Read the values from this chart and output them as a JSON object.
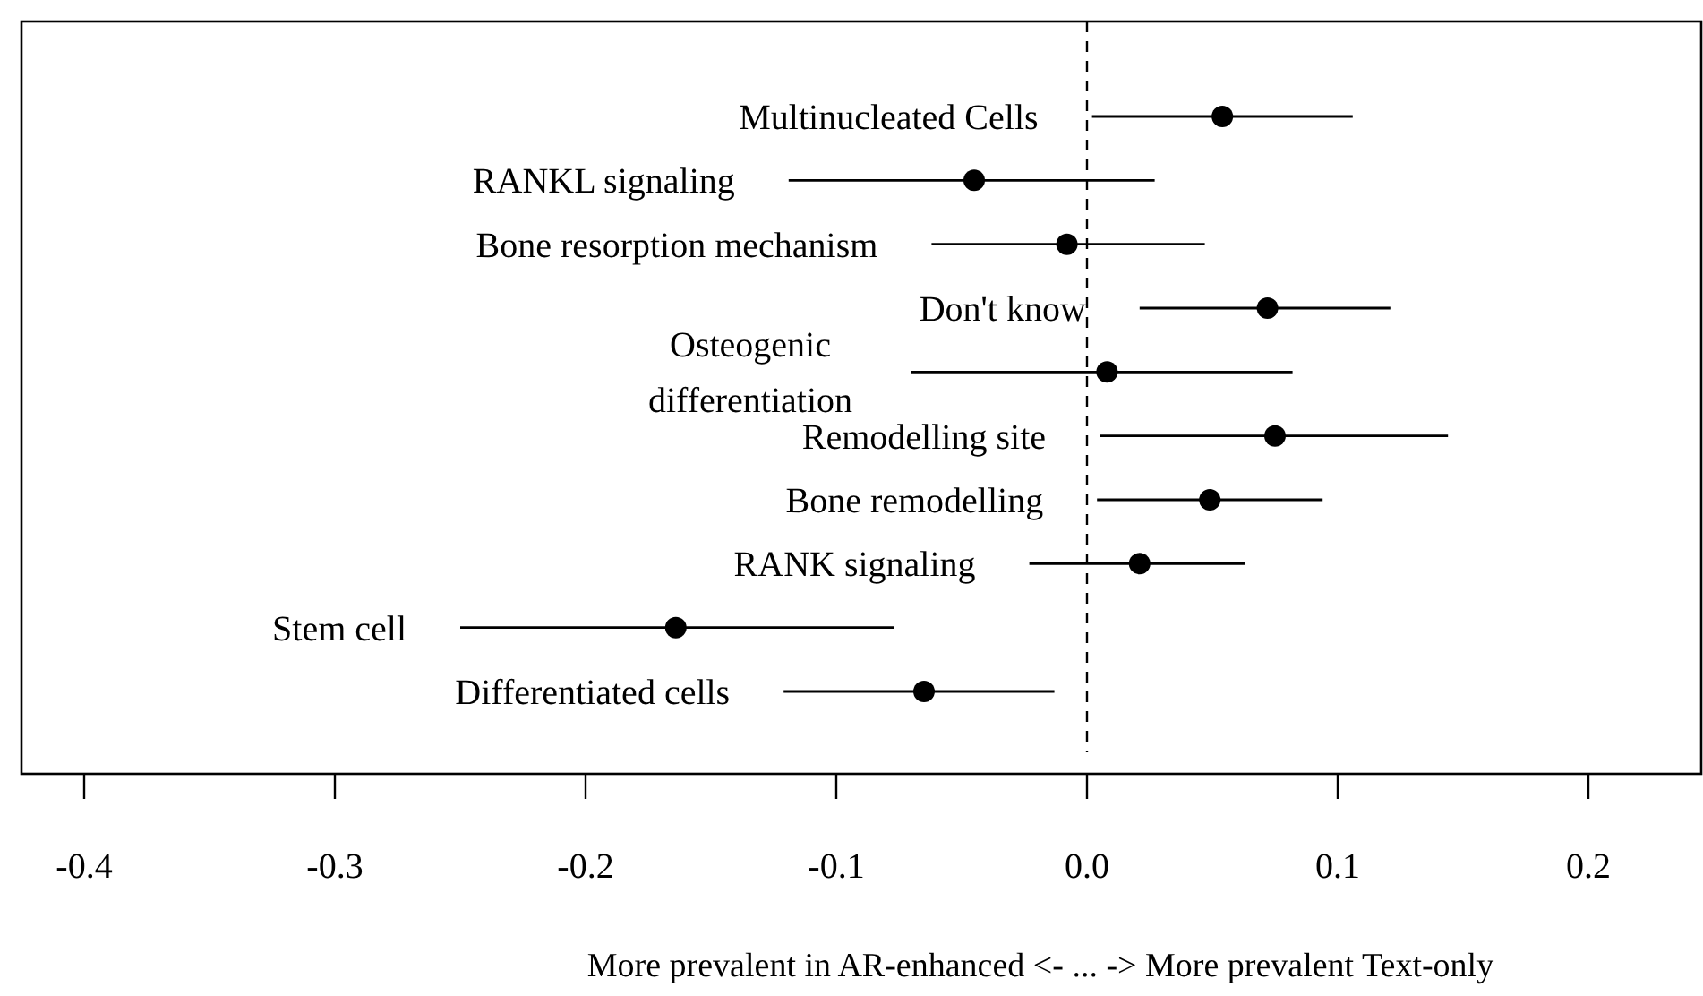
{
  "chart_data": {
    "type": "scatter",
    "orientation": "horizontal",
    "xlabel": "More prevalent in AR-enhanced <- ... -> More prevalent Text-only",
    "categories": [
      "Multinucleated Cells",
      "RANKL signaling",
      "Bone resorption mechanism",
      "Don't know",
      "Osteogenic\ndifferentiation",
      "Remodelling site",
      "Bone remodelling",
      "RANK signaling",
      "Stem cell",
      "Differentiated cells"
    ],
    "values": [
      0.054,
      -0.045,
      -0.008,
      0.072,
      0.008,
      0.075,
      0.049,
      0.021,
      -0.164,
      -0.065
    ],
    "errors": [
      [
        0.002,
        0.106
      ],
      [
        -0.119,
        0.027
      ],
      [
        -0.062,
        0.047
      ],
      [
        0.021,
        0.121
      ],
      [
        -0.07,
        0.082
      ],
      [
        0.005,
        0.144
      ],
      [
        0.004,
        0.094
      ],
      [
        -0.023,
        0.063
      ],
      [
        -0.25,
        -0.077
      ],
      [
        -0.121,
        -0.013
      ]
    ],
    "color": "#000000",
    "marker": "circle",
    "tick_labels": "x",
    "xlim": [
      -0.425,
      0.245
    ],
    "xticks": [
      {
        "value": -0.4,
        "label": "-0.4"
      },
      {
        "value": -0.3,
        "label": "-0.3"
      },
      {
        "value": -0.2,
        "label": "-0.2"
      },
      {
        "value": -0.1,
        "label": "-0.1"
      },
      {
        "value": 0,
        "label": "0.0"
      },
      {
        "value": 0.1,
        "label": "0.1"
      },
      {
        "value": 0.2,
        "label": "0.2"
      }
    ],
    "ref_lines": [
      {
        "axis": "x",
        "value": 0,
        "line_style": "dashed"
      }
    ]
  }
}
